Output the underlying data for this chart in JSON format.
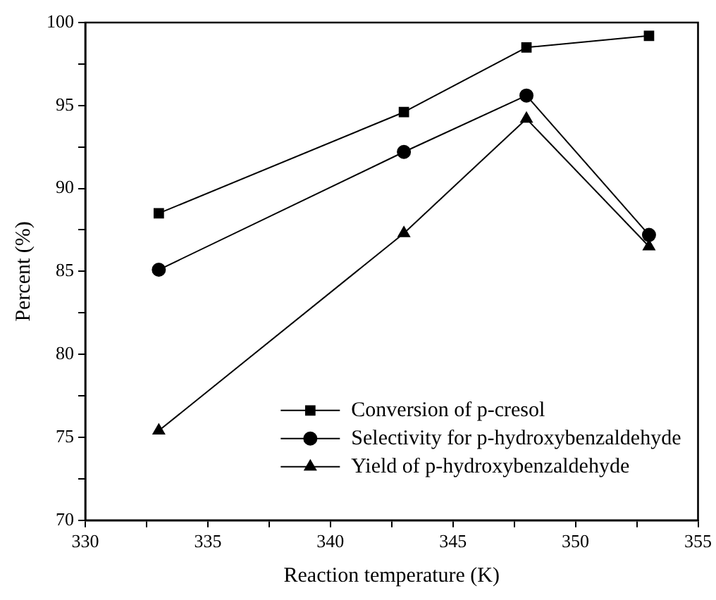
{
  "chart_data": {
    "type": "line",
    "xlabel": "Reaction temperature (K)",
    "ylabel": "Percent (%)",
    "x": [
      333,
      343,
      348,
      353
    ],
    "series": [
      {
        "name": "Conversion of p-cresol",
        "color": "#000000",
        "marker": "square",
        "values": [
          88.5,
          94.6,
          98.5,
          99.2
        ]
      },
      {
        "name": "Selectivity for p-hydroxybenzaldehyde",
        "color": "#000000",
        "marker": "circle",
        "values": [
          85.1,
          92.2,
          95.6,
          87.2
        ]
      },
      {
        "name": "Yield of p-hydroxybenzaldehyde",
        "color": "#000000",
        "marker": "triangle",
        "values": [
          75.4,
          87.3,
          94.2,
          86.5
        ]
      }
    ],
    "xlim": [
      330,
      355
    ],
    "xticks": [
      330,
      {
        "value": 332.5,
        "label": null
      },
      335,
      {
        "value": 337.5,
        "label": null
      },
      340,
      {
        "value": 342.5,
        "label": null
      },
      345,
      {
        "value": 347.5,
        "label": null
      },
      350,
      {
        "value": 352.5,
        "label": null
      },
      355
    ],
    "ylim": [
      70,
      100
    ],
    "yticks": [
      70,
      {
        "value": 72.5,
        "label": null
      },
      75,
      {
        "value": 77.5,
        "label": null
      },
      80,
      {
        "value": 82.5,
        "label": null
      },
      85,
      {
        "value": 87.5,
        "label": null
      },
      90,
      {
        "value": 92.5,
        "label": null
      },
      95,
      {
        "value": 97.5,
        "label": null
      },
      100
    ],
    "grid": false,
    "legend": "bottom right",
    "line_style": "solid"
  }
}
